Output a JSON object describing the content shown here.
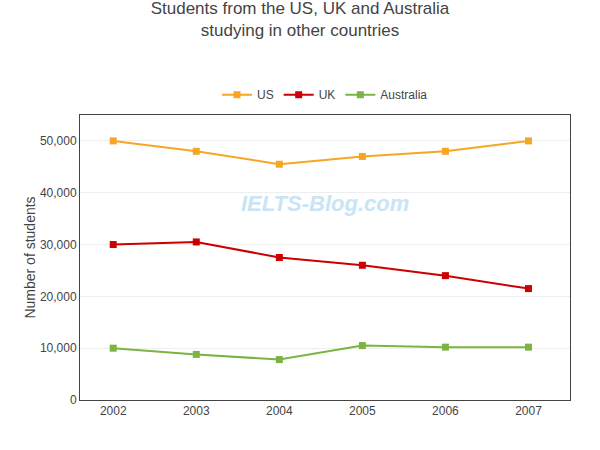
{
  "chart_data": {
    "type": "line",
    "title": "Students from the US, UK and Australia\nstudying in other countries",
    "y_label": "Number of students",
    "x": [
      2002,
      2003,
      2004,
      2005,
      2006,
      2007
    ],
    "series": [
      {
        "name": "US",
        "color": "#F5A623",
        "values": [
          50000,
          48000,
          45500,
          47000,
          48000,
          50000
        ]
      },
      {
        "name": "UK",
        "color": "#CC0000",
        "values": [
          30000,
          30500,
          27500,
          26000,
          24000,
          21500
        ]
      },
      {
        "name": "Australia",
        "color": "#7CB342",
        "values": [
          10000,
          8800,
          7800,
          10500,
          10200,
          10200
        ]
      }
    ],
    "xlim": [
      2001.6,
      2007.5
    ],
    "xticks": [
      2002,
      2003,
      2004,
      2005,
      2006,
      2007
    ],
    "ylim": [
      0,
      55000
    ],
    "yticks": [
      0,
      {
        "value": 10000,
        "label": "10,000"
      },
      {
        "value": 20000,
        "label": "20,000"
      },
      {
        "value": 30000,
        "label": "30,000"
      },
      {
        "value": 40000,
        "label": "40,000"
      },
      {
        "value": 50000,
        "label": "50,000"
      }
    ],
    "grid": true,
    "legend": "top",
    "marker": "square",
    "line_style": "solid",
    "annotations": [
      {
        "text": "IELTS-Blog.com",
        "color": "#c8e4f5"
      }
    ]
  }
}
